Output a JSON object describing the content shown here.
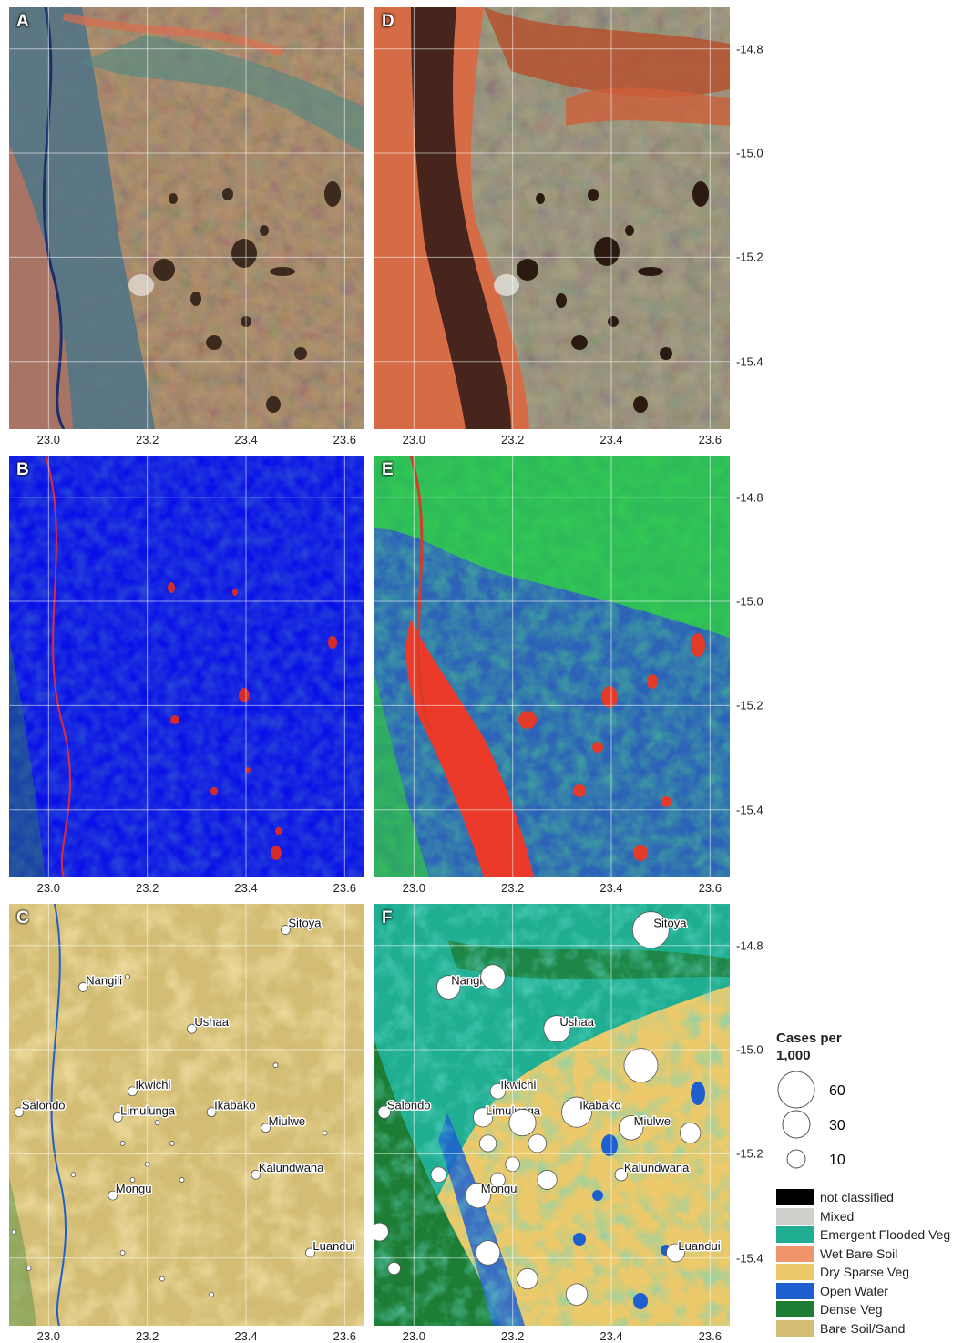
{
  "panels": [
    {
      "id": "A",
      "label": "A",
      "type": "satellite-true-color"
    },
    {
      "id": "D",
      "label": "D",
      "type": "satellite-false-color"
    },
    {
      "id": "B",
      "label": "B",
      "type": "rgb-composite-blue"
    },
    {
      "id": "E",
      "label": "E",
      "type": "rgb-composite-green"
    },
    {
      "id": "C",
      "label": "C",
      "type": "land-cover-dry-season"
    },
    {
      "id": "F",
      "label": "F",
      "type": "land-cover-with-cases"
    }
  ],
  "axes": {
    "x_ticks": [
      "23.0",
      "23.2",
      "23.4",
      "23.6"
    ],
    "x_values": [
      23.0,
      23.2,
      23.4,
      23.6
    ],
    "y_ticks": [
      "-14.8",
      "-15.0",
      "-15.2",
      "-15.4"
    ],
    "y_values": [
      -14.8,
      -15.0,
      -15.2,
      -15.4
    ],
    "lon_range": [
      22.92,
      23.64
    ],
    "lat_range": [
      -15.53,
      -14.72
    ],
    "grid": true
  },
  "towns": [
    {
      "name": "Sitoya",
      "lon": 23.48,
      "lat": -14.77,
      "cases": 60,
      "label_side": "right"
    },
    {
      "name": "Nangili",
      "lon": 23.07,
      "lat": -14.88,
      "cases": 20,
      "label_side": "right"
    },
    {
      "name": "",
      "lon": 23.16,
      "lat": -14.86,
      "cases": 22
    },
    {
      "name": "Ushaa",
      "lon": 23.29,
      "lat": -14.96,
      "cases": 28,
      "label_side": "right"
    },
    {
      "name": "",
      "lon": 23.46,
      "lat": -15.03,
      "cases": 50
    },
    {
      "name": "Ikwichi",
      "lon": 23.17,
      "lat": -15.08,
      "cases": 6,
      "label_side": "right"
    },
    {
      "name": "Salondo",
      "lon": 22.94,
      "lat": -15.12,
      "cases": 3,
      "label_side": "right"
    },
    {
      "name": "Limulunga",
      "lon": 23.14,
      "lat": -15.13,
      "cases": 12,
      "label_side": "right"
    },
    {
      "name": "",
      "lon": 23.22,
      "lat": -15.14,
      "cases": 28
    },
    {
      "name": "Ikabako",
      "lon": 23.33,
      "lat": -15.12,
      "cases": 38,
      "label_side": "right"
    },
    {
      "name": "Miulwe",
      "lon": 23.44,
      "lat": -15.15,
      "cases": 22,
      "label_side": "right"
    },
    {
      "name": "",
      "lon": 23.56,
      "lat": -15.16,
      "cases": 14
    },
    {
      "name": "",
      "lon": 23.15,
      "lat": -15.18,
      "cases": 8
    },
    {
      "name": "",
      "lon": 23.25,
      "lat": -15.18,
      "cases": 10
    },
    {
      "name": "",
      "lon": 23.2,
      "lat": -15.22,
      "cases": 5
    },
    {
      "name": "",
      "lon": 23.05,
      "lat": -15.24,
      "cases": 6
    },
    {
      "name": "Kalundwana",
      "lon": 23.42,
      "lat": -15.24,
      "cases": 3,
      "label_side": "right"
    },
    {
      "name": "",
      "lon": 23.17,
      "lat": -15.25,
      "cases": 5
    },
    {
      "name": "",
      "lon": 23.27,
      "lat": -15.25,
      "cases": 12
    },
    {
      "name": "Mongu",
      "lon": 23.13,
      "lat": -15.28,
      "cases": 24,
      "label_side": "right"
    },
    {
      "name": "",
      "lon": 22.93,
      "lat": -15.35,
      "cases": 10
    },
    {
      "name": "",
      "lon": 23.15,
      "lat": -15.39,
      "cases": 22
    },
    {
      "name": "Luandui",
      "lon": 23.53,
      "lat": -15.39,
      "cases": 10,
      "label_side": "right"
    },
    {
      "name": "",
      "lon": 22.96,
      "lat": -15.42,
      "cases": 3
    },
    {
      "name": "",
      "lon": 23.23,
      "lat": -15.44,
      "cases": 14
    },
    {
      "name": "",
      "lon": 23.33,
      "lat": -15.47,
      "cases": 16
    }
  ],
  "legend": {
    "size_title": "Cases per 1,000",
    "sizes": [
      {
        "label": "60",
        "value": 60
      },
      {
        "label": "30",
        "value": 30
      },
      {
        "label": "10",
        "value": 10
      }
    ],
    "classes": [
      {
        "label": "not classified",
        "color": "#000000"
      },
      {
        "label": "Mixed",
        "color": "#cfcfcc"
      },
      {
        "label": "Emergent Flooded Veg",
        "color": "#1fae91"
      },
      {
        "label": "Wet Bare Soil",
        "color": "#f0946a"
      },
      {
        "label": "Dry Sparse Veg",
        "color": "#ecc96a"
      },
      {
        "label": "Open Water",
        "color": "#1d5fcf"
      },
      {
        "label": "Dense Veg",
        "color": "#1e7d34"
      },
      {
        "label": "Bare Soil/Sand",
        "color": "#d3bd74"
      }
    ]
  }
}
